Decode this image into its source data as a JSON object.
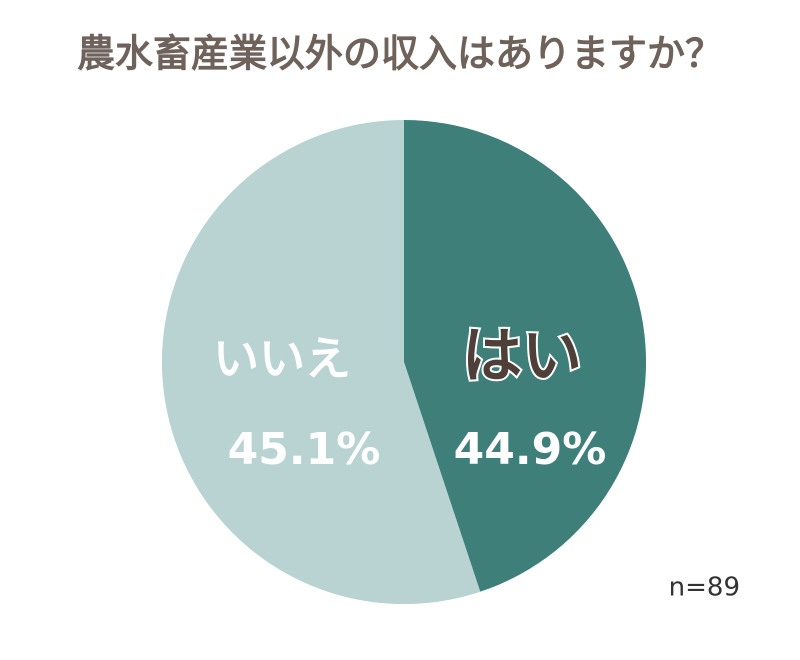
{
  "chart_data": {
    "type": "pie",
    "title": "農水畜産業以外の収入はありますか？",
    "categories": [
      "はい",
      "いいえ"
    ],
    "values": [
      44.9,
      45.1
    ],
    "value_labels": [
      "44.9%",
      "45.1%"
    ],
    "colors": [
      "#3f7f7a",
      "#b9d3d2"
    ],
    "note": "n=89"
  }
}
